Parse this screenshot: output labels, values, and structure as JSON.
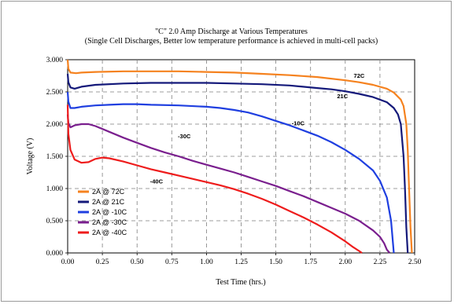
{
  "chart_data": {
    "type": "line",
    "title": "\"C\" 2.0 Amp Discharge at Various Temperatures",
    "subtitle": "(Single Cell Discharges, Better low temperature performance is achieved in multi-cell packs)",
    "xlabel": "Test Time (hrs.)",
    "ylabel": "Voltage (V)",
    "xlim": [
      0,
      2.5
    ],
    "ylim": [
      0,
      3.0
    ],
    "x_ticks": [
      "0.00",
      "0.25",
      "0.50",
      "0.75",
      "1.00",
      "1.25",
      "1.50",
      "1.75",
      "2.00",
      "2.25",
      "2.50"
    ],
    "y_ticks": [
      "0.000",
      "0.500",
      "1.000",
      "1.500",
      "2.000",
      "2.500",
      "3.000"
    ],
    "grid": true,
    "legend_position": "bottom-left",
    "series": [
      {
        "name": "2A @ 72C",
        "annotation": "72C",
        "color": "#f5821f",
        "x": [
          0,
          0.005,
          0.02,
          0.06,
          0.1,
          0.2,
          0.4,
          0.6,
          0.8,
          1.0,
          1.2,
          1.4,
          1.6,
          1.8,
          2.0,
          2.1,
          2.2,
          2.3,
          2.35,
          2.4,
          2.42,
          2.44,
          2.45,
          2.46,
          2.47,
          2.48
        ],
        "y": [
          3.0,
          2.86,
          2.8,
          2.79,
          2.8,
          2.81,
          2.82,
          2.82,
          2.82,
          2.81,
          2.8,
          2.78,
          2.76,
          2.73,
          2.68,
          2.65,
          2.61,
          2.55,
          2.49,
          2.38,
          2.28,
          2.0,
          1.6,
          1.0,
          0.4,
          0.0
        ]
      },
      {
        "name": "2A @ 21C",
        "annotation": "21C",
        "color": "#14197a",
        "x": [
          0,
          0.005,
          0.02,
          0.05,
          0.1,
          0.2,
          0.4,
          0.6,
          0.8,
          1.0,
          1.2,
          1.4,
          1.6,
          1.8,
          1.9,
          2.0,
          2.1,
          2.2,
          2.3,
          2.35,
          2.38,
          2.4,
          2.42,
          2.43,
          2.44,
          2.45
        ],
        "y": [
          2.78,
          2.65,
          2.57,
          2.55,
          2.58,
          2.61,
          2.63,
          2.64,
          2.64,
          2.64,
          2.63,
          2.62,
          2.6,
          2.56,
          2.54,
          2.51,
          2.47,
          2.42,
          2.34,
          2.25,
          2.15,
          2.0,
          1.5,
          1.0,
          0.4,
          0.0
        ]
      },
      {
        "name": "2A @ -10C",
        "annotation": "-10C",
        "color": "#1f3fe0",
        "x": [
          0,
          0.005,
          0.02,
          0.05,
          0.1,
          0.2,
          0.3,
          0.4,
          0.5,
          0.6,
          0.8,
          1.0,
          1.1,
          1.2,
          1.3,
          1.4,
          1.5,
          1.6,
          1.7,
          1.8,
          1.9,
          2.0,
          2.1,
          2.2,
          2.25,
          2.3,
          2.33,
          2.35
        ],
        "y": [
          2.5,
          2.35,
          2.25,
          2.25,
          2.27,
          2.29,
          2.3,
          2.31,
          2.31,
          2.3,
          2.29,
          2.27,
          2.25,
          2.22,
          2.18,
          2.12,
          2.05,
          1.98,
          1.9,
          1.82,
          1.72,
          1.6,
          1.46,
          1.28,
          1.12,
          0.86,
          0.5,
          0.0
        ]
      },
      {
        "name": "2A @ -30C",
        "annotation": "-30C",
        "color": "#7a1f8e",
        "x": [
          0,
          0.005,
          0.02,
          0.05,
          0.1,
          0.15,
          0.2,
          0.3,
          0.4,
          0.5,
          0.6,
          0.7,
          0.8,
          0.9,
          1.0,
          1.1,
          1.2,
          1.3,
          1.4,
          1.5,
          1.6,
          1.7,
          1.8,
          1.9,
          2.0,
          2.1,
          2.2,
          2.25,
          2.28,
          2.3,
          2.32
        ],
        "y": [
          2.15,
          2.02,
          1.95,
          1.98,
          2.0,
          2.0,
          1.97,
          1.88,
          1.79,
          1.71,
          1.63,
          1.56,
          1.5,
          1.43,
          1.37,
          1.31,
          1.25,
          1.18,
          1.11,
          1.04,
          0.96,
          0.88,
          0.79,
          0.7,
          0.61,
          0.5,
          0.35,
          0.25,
          0.15,
          0.05,
          0.0
        ]
      },
      {
        "name": "2A @ -40C",
        "annotation": "-40C",
        "color": "#ee1c1c",
        "x": [
          0,
          0.005,
          0.02,
          0.05,
          0.1,
          0.15,
          0.2,
          0.25,
          0.3,
          0.4,
          0.5,
          0.6,
          0.7,
          0.8,
          0.9,
          1.0,
          1.1,
          1.2,
          1.3,
          1.4,
          1.5,
          1.6,
          1.7,
          1.8,
          1.9,
          2.0,
          2.05,
          2.1,
          2.12
        ],
        "y": [
          2.3,
          1.85,
          1.6,
          1.45,
          1.4,
          1.41,
          1.46,
          1.48,
          1.47,
          1.42,
          1.36,
          1.3,
          1.25,
          1.2,
          1.15,
          1.1,
          1.05,
          0.99,
          0.92,
          0.84,
          0.75,
          0.65,
          0.55,
          0.44,
          0.32,
          0.18,
          0.1,
          0.03,
          0.0
        ]
      }
    ]
  }
}
